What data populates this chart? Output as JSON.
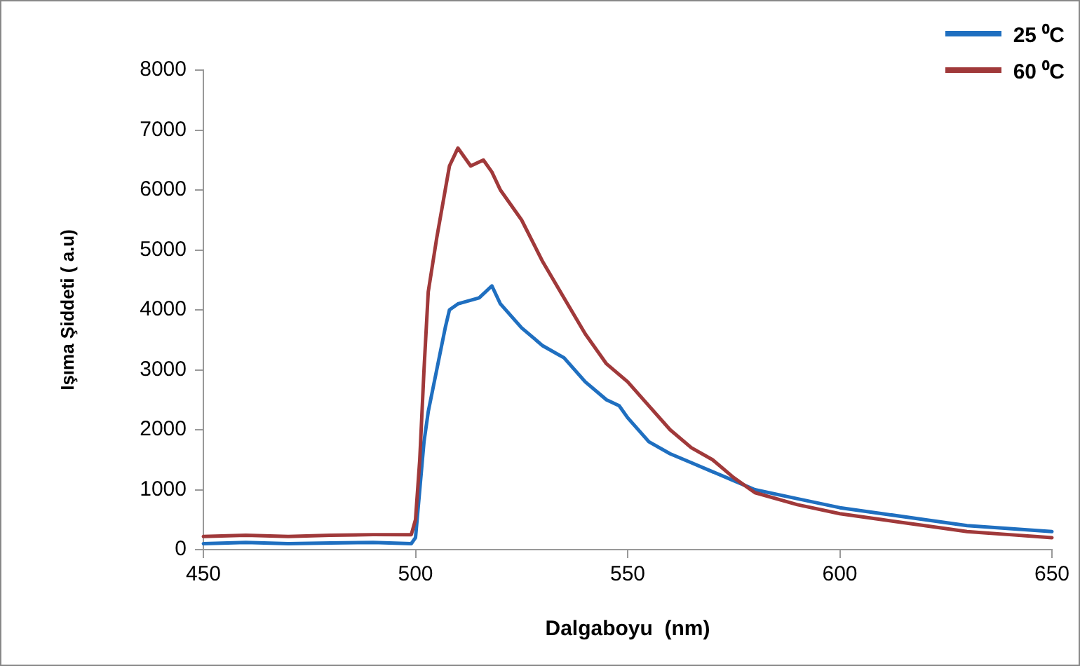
{
  "chart_data": {
    "type": "line",
    "xlabel": "Dalgaboyu  (nm)",
    "ylabel": "Işıma Şiddeti ( a.u)",
    "xlim": [
      450,
      650
    ],
    "xticks": [
      450,
      500,
      550,
      600,
      650
    ],
    "ylim": [
      0,
      8000
    ],
    "yticks": [
      0,
      1000,
      2000,
      3000,
      4000,
      5000,
      6000,
      7000,
      8000
    ],
    "grid": false,
    "legend": "top right",
    "marker": "none",
    "line_style": "solid",
    "series": [
      {
        "name": "25 ⁰C",
        "color": "#1f6fc0",
        "x": [
          450,
          460,
          470,
          480,
          490,
          499,
          500,
          501,
          502,
          503,
          505,
          507,
          508,
          510,
          515,
          518,
          520,
          525,
          530,
          535,
          540,
          545,
          548,
          550,
          555,
          560,
          565,
          570,
          575,
          580,
          590,
          600,
          610,
          620,
          630,
          640,
          650
        ],
        "values": [
          100,
          120,
          100,
          110,
          120,
          100,
          200,
          1000,
          1800,
          2300,
          3000,
          3700,
          4000,
          4100,
          4200,
          4400,
          4100,
          3700,
          3400,
          3200,
          2800,
          2500,
          2400,
          2200,
          1800,
          1600,
          1450,
          1300,
          1150,
          1000,
          850,
          700,
          600,
          500,
          400,
          350,
          300
        ]
      },
      {
        "name": "60 ⁰C",
        "color": "#a0393a",
        "x": [
          450,
          460,
          470,
          480,
          490,
          499,
          500,
          501,
          502,
          503,
          505,
          507,
          508,
          510,
          511,
          513,
          516,
          518,
          520,
          525,
          530,
          535,
          540,
          545,
          550,
          555,
          560,
          565,
          570,
          575,
          580,
          590,
          600,
          610,
          620,
          630,
          640,
          650
        ],
        "values": [
          220,
          240,
          220,
          240,
          250,
          250,
          500,
          1500,
          3000,
          4300,
          5200,
          6000,
          6400,
          6700,
          6600,
          6400,
          6500,
          6300,
          6000,
          5500,
          4800,
          4200,
          3600,
          3100,
          2800,
          2400,
          2000,
          1700,
          1500,
          1200,
          950,
          750,
          600,
          500,
          400,
          300,
          250,
          200
        ]
      }
    ]
  }
}
